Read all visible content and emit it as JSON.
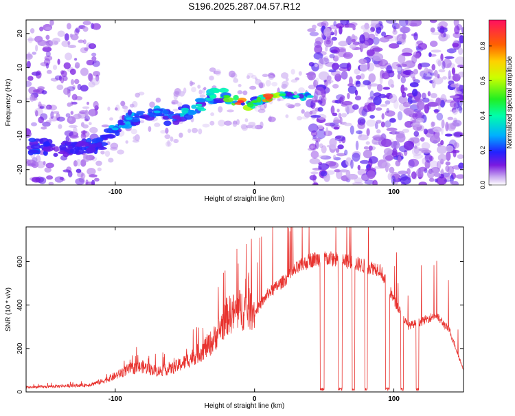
{
  "figure": {
    "title": "S196.2025.287.04.57.R12"
  },
  "chart_data": [
    {
      "type": "heatmap",
      "xlabel": "Height of straight line (km)",
      "ylabel": "Frequency (Hz)",
      "xlim": [
        -164,
        150
      ],
      "ylim": [
        -24.5,
        24
      ],
      "xticks": [
        -100,
        0,
        100
      ],
      "xtick_labels": [
        "-100",
        "0",
        "100"
      ],
      "yticks": [
        -20,
        -10,
        0,
        10,
        20
      ],
      "ytick_labels": [
        "-20",
        "-10",
        "0",
        "10",
        "20"
      ],
      "colorbar": {
        "label": "Normalized spectral amplitude",
        "range": [
          0,
          0.95
        ],
        "ticks": [
          0.0,
          0.2,
          0.4,
          0.6,
          0.8
        ],
        "tick_labels": [
          "0.0",
          "0.2",
          "0.4",
          "0.6",
          "0.8"
        ]
      },
      "ridge": {
        "x": [
          -160,
          -140,
          -120,
          -110,
          -100,
          -90,
          -80,
          -70,
          -60,
          -50,
          -40,
          -30,
          -20,
          -10,
          0,
          10,
          20,
          30,
          40
        ],
        "y": [
          -13,
          -14,
          -13.5,
          -12,
          -8,
          -5,
          -5,
          -3,
          -5,
          -3,
          -1,
          1.5,
          1.5,
          0,
          0,
          1,
          2,
          1.5,
          1.5
        ],
        "peak_amplitude": [
          0.22,
          0.15,
          0.2,
          0.25,
          0.3,
          0.3,
          0.25,
          0.3,
          0.25,
          0.35,
          0.35,
          0.4,
          0.5,
          0.9,
          0.5,
          0.85,
          0.45,
          0.4,
          0.35
        ]
      }
    },
    {
      "type": "line",
      "xlabel": "Height of straight line (km)",
      "ylabel": "SNR (10 * v/v)",
      "xlim": [
        -164,
        150
      ],
      "ylim": [
        0,
        760
      ],
      "xticks": [
        -100,
        0,
        100
      ],
      "xtick_labels": [
        "-100",
        "0",
        "100"
      ],
      "yticks": [
        0,
        200,
        400,
        600
      ],
      "ytick_labels": [
        "0",
        "200",
        "400",
        "600"
      ],
      "color": "#e8332f",
      "envelope": {
        "x": [
          -164,
          -120,
          -110,
          -100,
          -90,
          -80,
          -70,
          -60,
          -50,
          -40,
          -30,
          -20,
          -10,
          0,
          10,
          20,
          30,
          40,
          50,
          60,
          70,
          80,
          90,
          100,
          110,
          120,
          130,
          140,
          150
        ],
        "y": [
          20,
          30,
          45,
          70,
          100,
          110,
          90,
          100,
          130,
          170,
          220,
          330,
          360,
          360,
          450,
          500,
          560,
          600,
          610,
          600,
          590,
          570,
          560,
          420,
          300,
          320,
          350,
          280,
          100
        ]
      },
      "dropouts": [
        [
          47,
          50
        ],
        [
          60,
          63
        ],
        [
          70,
          72
        ],
        [
          79,
          81
        ],
        [
          94,
          97
        ],
        [
          105,
          107
        ],
        [
          116,
          118
        ]
      ]
    }
  ]
}
